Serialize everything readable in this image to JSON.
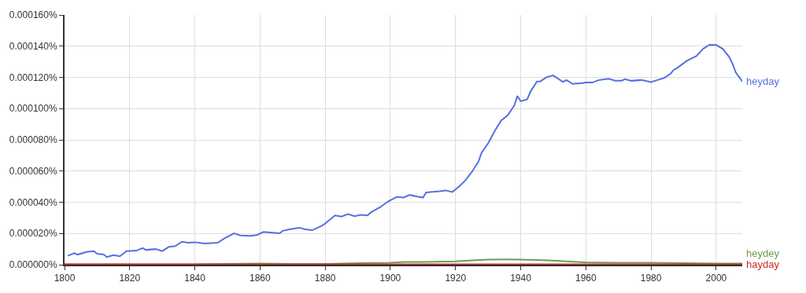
{
  "chart_data": {
    "type": "line",
    "legend": false,
    "grid": true,
    "marker": "none",
    "line_style": "solid",
    "xlim": [
      1800,
      2008
    ],
    "xticks": [
      1800,
      1820,
      1840,
      1860,
      1880,
      1900,
      1920,
      1940,
      1960,
      1980,
      2000
    ],
    "ylim": [
      0,
      0.00016
    ],
    "yticks": [
      {
        "value": 0,
        "label": "0.000000%"
      },
      {
        "value": 2e-05,
        "label": "0.000020%"
      },
      {
        "value": 4e-05,
        "label": "0.000040%"
      },
      {
        "value": 6e-05,
        "label": "0.000060%"
      },
      {
        "value": 8e-05,
        "label": "0.000080%"
      },
      {
        "value": 0.0001,
        "label": "0.000100%"
      },
      {
        "value": 0.00012,
        "label": "0.000120%"
      },
      {
        "value": 0.00014,
        "label": "0.000140%"
      },
      {
        "value": 0.00016,
        "label": "0.000160%"
      }
    ],
    "series": [
      {
        "name": "heyday",
        "color": "#5670e0",
        "x": [
          1801,
          1803,
          1804,
          1807,
          1809,
          1810,
          1812,
          1813,
          1815,
          1817,
          1819,
          1822,
          1824,
          1825,
          1828,
          1830,
          1832,
          1834,
          1836,
          1838,
          1840,
          1843,
          1847,
          1849,
          1852,
          1854,
          1857,
          1859,
          1861,
          1864,
          1866,
          1867,
          1869,
          1872,
          1874,
          1876,
          1879,
          1880,
          1883,
          1885,
          1887,
          1889,
          1891,
          1893,
          1894,
          1897,
          1899,
          1902,
          1904,
          1906,
          1908,
          1910,
          1911,
          1915,
          1917,
          1919,
          1921,
          1923,
          1925,
          1927,
          1928,
          1930,
          1932,
          1934,
          1936,
          1938,
          1939,
          1940,
          1942,
          1943,
          1945,
          1946,
          1948,
          1950,
          1953,
          1954,
          1956,
          1959,
          1960,
          1962,
          1964,
          1967,
          1969,
          1971,
          1972,
          1974,
          1977,
          1980,
          1982,
          1984,
          1986,
          1987,
          1988,
          1991,
          1994,
          1996,
          1998,
          2000,
          2002,
          2004,
          2005,
          2006,
          2008
        ],
        "values": [
          5.7e-06,
          7.4e-06,
          6.5e-06,
          8.3e-06,
          8.7e-06,
          7e-06,
          6.5e-06,
          4.9e-06,
          6.2e-06,
          5.4e-06,
          8.7e-06,
          9e-06,
          1.06e-05,
          9.5e-06,
          1e-05,
          8.7e-06,
          1.14e-05,
          1.19e-05,
          1.47e-05,
          1.41e-05,
          1.44e-05,
          1.36e-05,
          1.41e-05,
          1.68e-05,
          2.01e-05,
          1.88e-05,
          1.85e-05,
          1.9e-05,
          2.1e-05,
          2.05e-05,
          2.01e-05,
          2.17e-05,
          2.26e-05,
          2.37e-05,
          2.26e-05,
          2.21e-05,
          2.5e-05,
          2.64e-05,
          3.16e-05,
          3.08e-05,
          3.24e-05,
          3.11e-05,
          3.19e-05,
          3.16e-05,
          3.35e-05,
          3.7e-05,
          4.01e-05,
          4.35e-05,
          4.3e-05,
          4.47e-05,
          4.38e-05,
          4.3e-05,
          4.63e-05,
          4.71e-05,
          4.76e-05,
          4.66e-05,
          4.99e-05,
          5.4e-05,
          5.94e-05,
          6.59e-05,
          7.17e-05,
          7.77e-05,
          8.55e-05,
          9.24e-05,
          9.57e-05,
          0.0001019,
          0.0001081,
          0.0001047,
          0.000106,
          0.0001109,
          0.0001174,
          0.0001174,
          0.0001202,
          0.0001212,
          0.0001171,
          0.0001183,
          0.0001158,
          0.0001163,
          0.0001167,
          0.0001167,
          0.0001183,
          0.0001191,
          0.0001179,
          0.0001179,
          0.0001188,
          0.0001178,
          0.0001183,
          0.000117,
          0.0001183,
          0.0001196,
          0.0001224,
          0.0001248,
          0.000126,
          0.0001306,
          0.0001338,
          0.0001383,
          0.0001409,
          0.0001407,
          0.0001383,
          0.000133,
          0.0001289,
          0.0001232,
          0.0001174
        ]
      },
      {
        "name": "heydey",
        "color": "#6a9e50",
        "x": [
          1800,
          1840,
          1860,
          1870,
          1880,
          1890,
          1900,
          1905,
          1910,
          1920,
          1925,
          1930,
          1935,
          1940,
          1945,
          1950,
          1955,
          1960,
          1970,
          1980,
          1990,
          2000,
          2008
        ],
        "values": [
          2e-07,
          3e-07,
          7e-07,
          5e-07,
          5e-07,
          1e-06,
          1.3e-06,
          1.8e-06,
          1.7e-06,
          2.1e-06,
          2.8e-06,
          3.3e-06,
          3.4e-06,
          3.3e-06,
          3e-06,
          2.6e-06,
          2e-06,
          1.5e-06,
          1.3e-06,
          1.2e-06,
          1e-06,
          8e-07,
          8e-07
        ]
      },
      {
        "name": "hayday",
        "color": "#cc2a2a",
        "x": [
          1800,
          1850,
          1900,
          1950,
          2000,
          2008
        ],
        "values": [
          2e-07,
          2e-07,
          2e-07,
          3e-07,
          2e-07,
          2e-07
        ]
      }
    ]
  }
}
